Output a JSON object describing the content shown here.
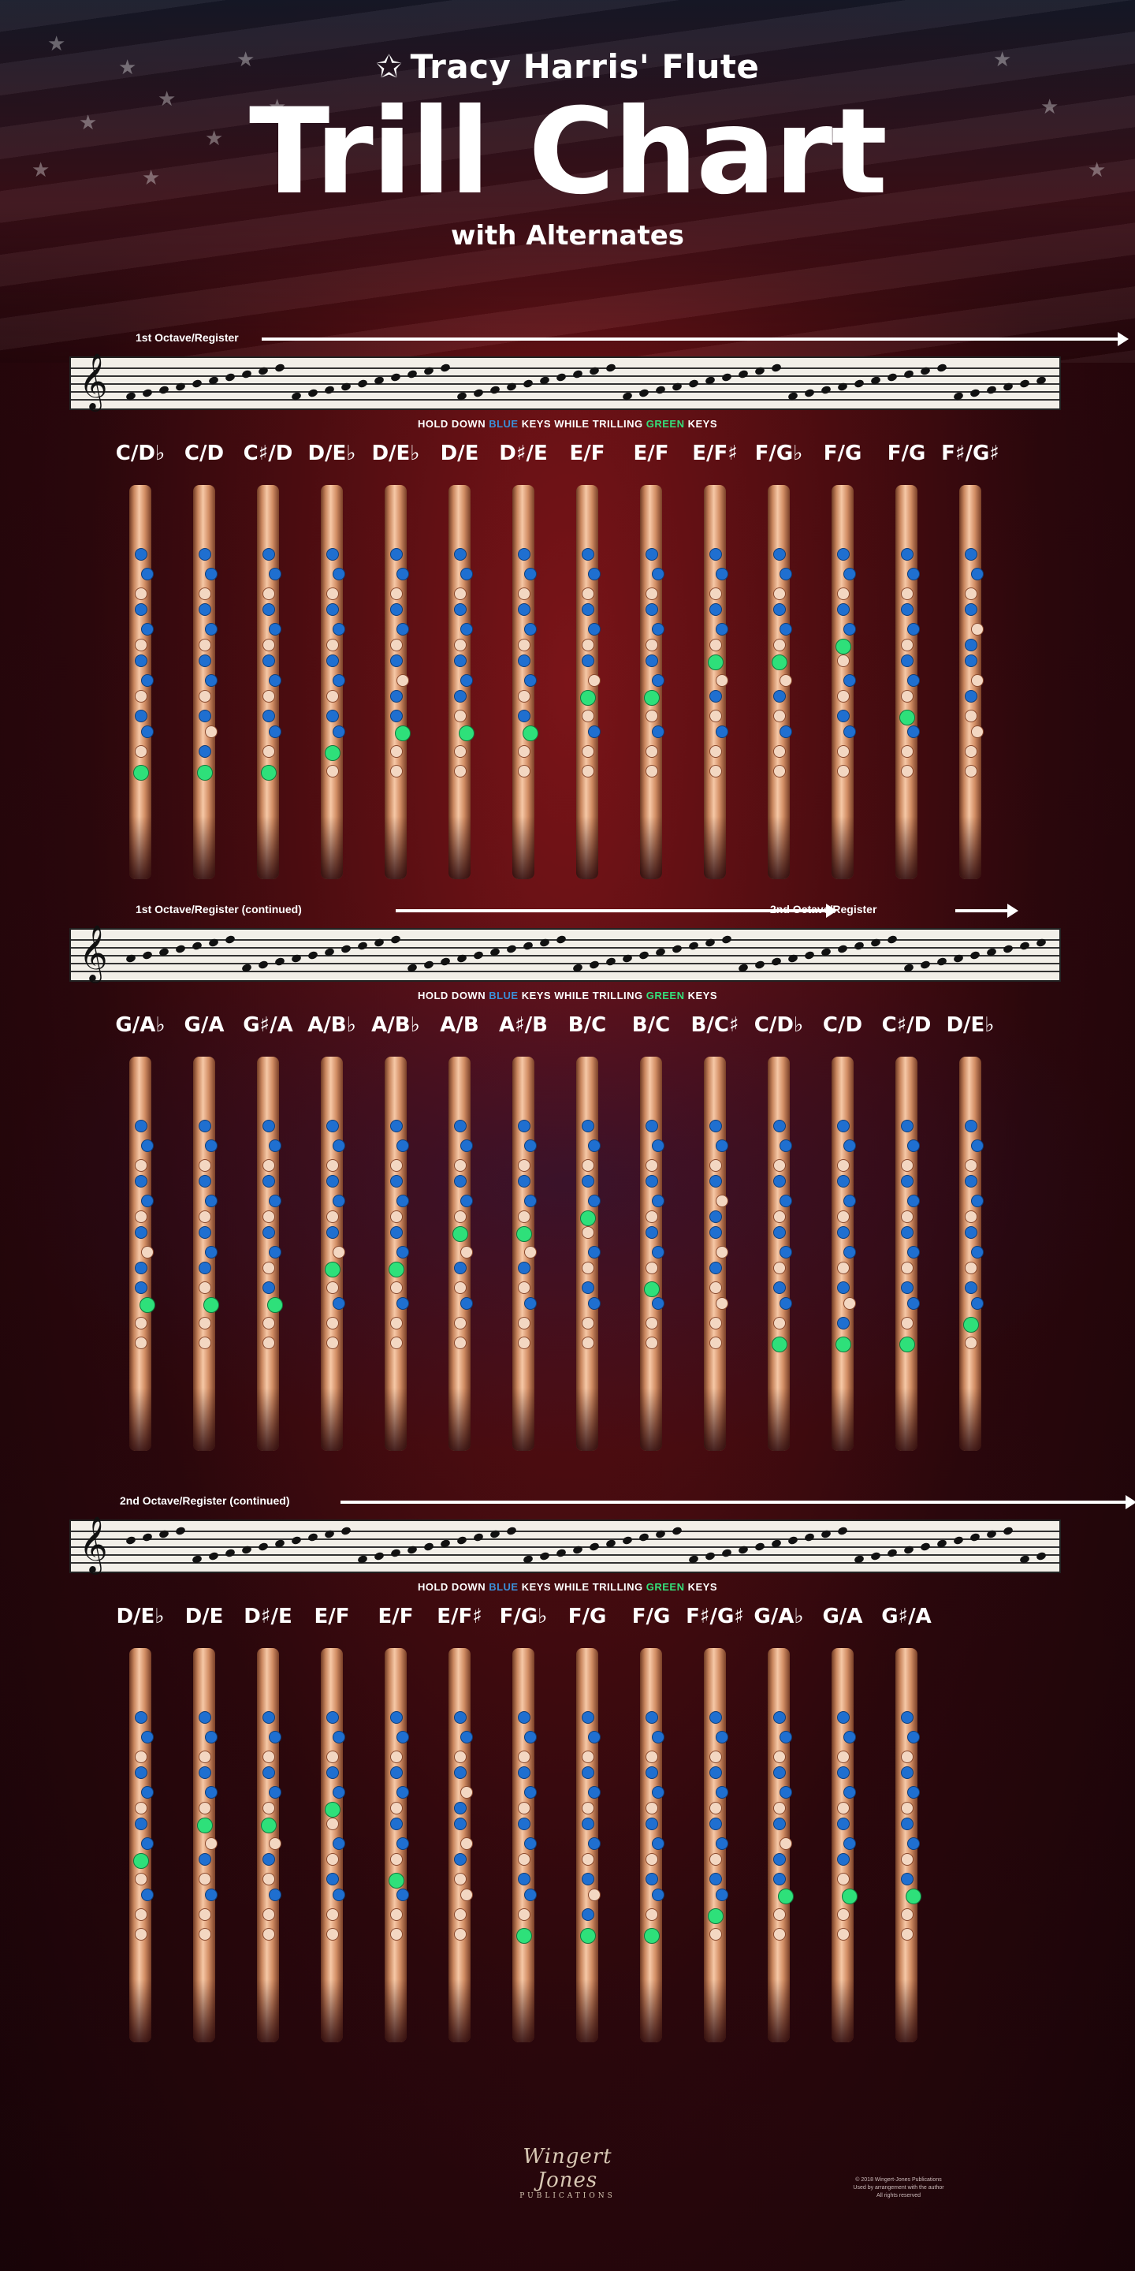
{
  "header": {
    "top_line": "Tracy Harris' Flute",
    "title": "Trill Chart",
    "with_alternates": "with Alternates"
  },
  "instruction": {
    "part1": "HOLD DOWN ",
    "blue_word": "BLUE",
    "part2": " KEYS WHILE TRILLING ",
    "green_word": "GREEN",
    "part3": " KEYS"
  },
  "colors": {
    "held_keys": "#1f6fd0",
    "trilled_keys": "#2ee07a",
    "background": "#4a0c10"
  },
  "sections": [
    {
      "registers": [
        {
          "label": "1st Octave/Register"
        }
      ],
      "trills": [
        "C/D♭",
        "C/D",
        "C♯/D",
        "D/E♭",
        "D/E♭",
        "D/E",
        "D♯/E",
        "E/F",
        "E/F",
        "E/F♯",
        "F/G♭",
        "F/G",
        "F/G",
        "F♯/G♯"
      ]
    },
    {
      "registers": [
        {
          "label": "1st Octave/Register (continued)"
        },
        {
          "label": "2nd Octave/Register"
        }
      ],
      "trills": [
        "G/A♭",
        "G/A",
        "G♯/A",
        "A/B♭",
        "A/B♭",
        "A/B",
        "A♯/B",
        "B/C",
        "B/C",
        "B/C♯",
        "C/D♭",
        "C/D",
        "C♯/D",
        "D/E♭"
      ]
    },
    {
      "registers": [
        {
          "label": "2nd Octave/Register (continued)"
        }
      ],
      "trills": [
        "D/E♭",
        "D/E",
        "D♯/E",
        "E/F",
        "E/F",
        "E/F♯",
        "F/G♭",
        "F/G",
        "F/G",
        "F♯/G♯",
        "G/A♭",
        "G/A",
        "G♯/A"
      ]
    }
  ],
  "footer": {
    "publisher_logo": "Wingert Jones",
    "publisher_sub": "PUBLICATIONS",
    "copyright_line1": "© 2018 Wingert-Jones Publications",
    "copyright_line2": "Used by arrangement with the author",
    "copyright_line3": "All rights reserved"
  }
}
